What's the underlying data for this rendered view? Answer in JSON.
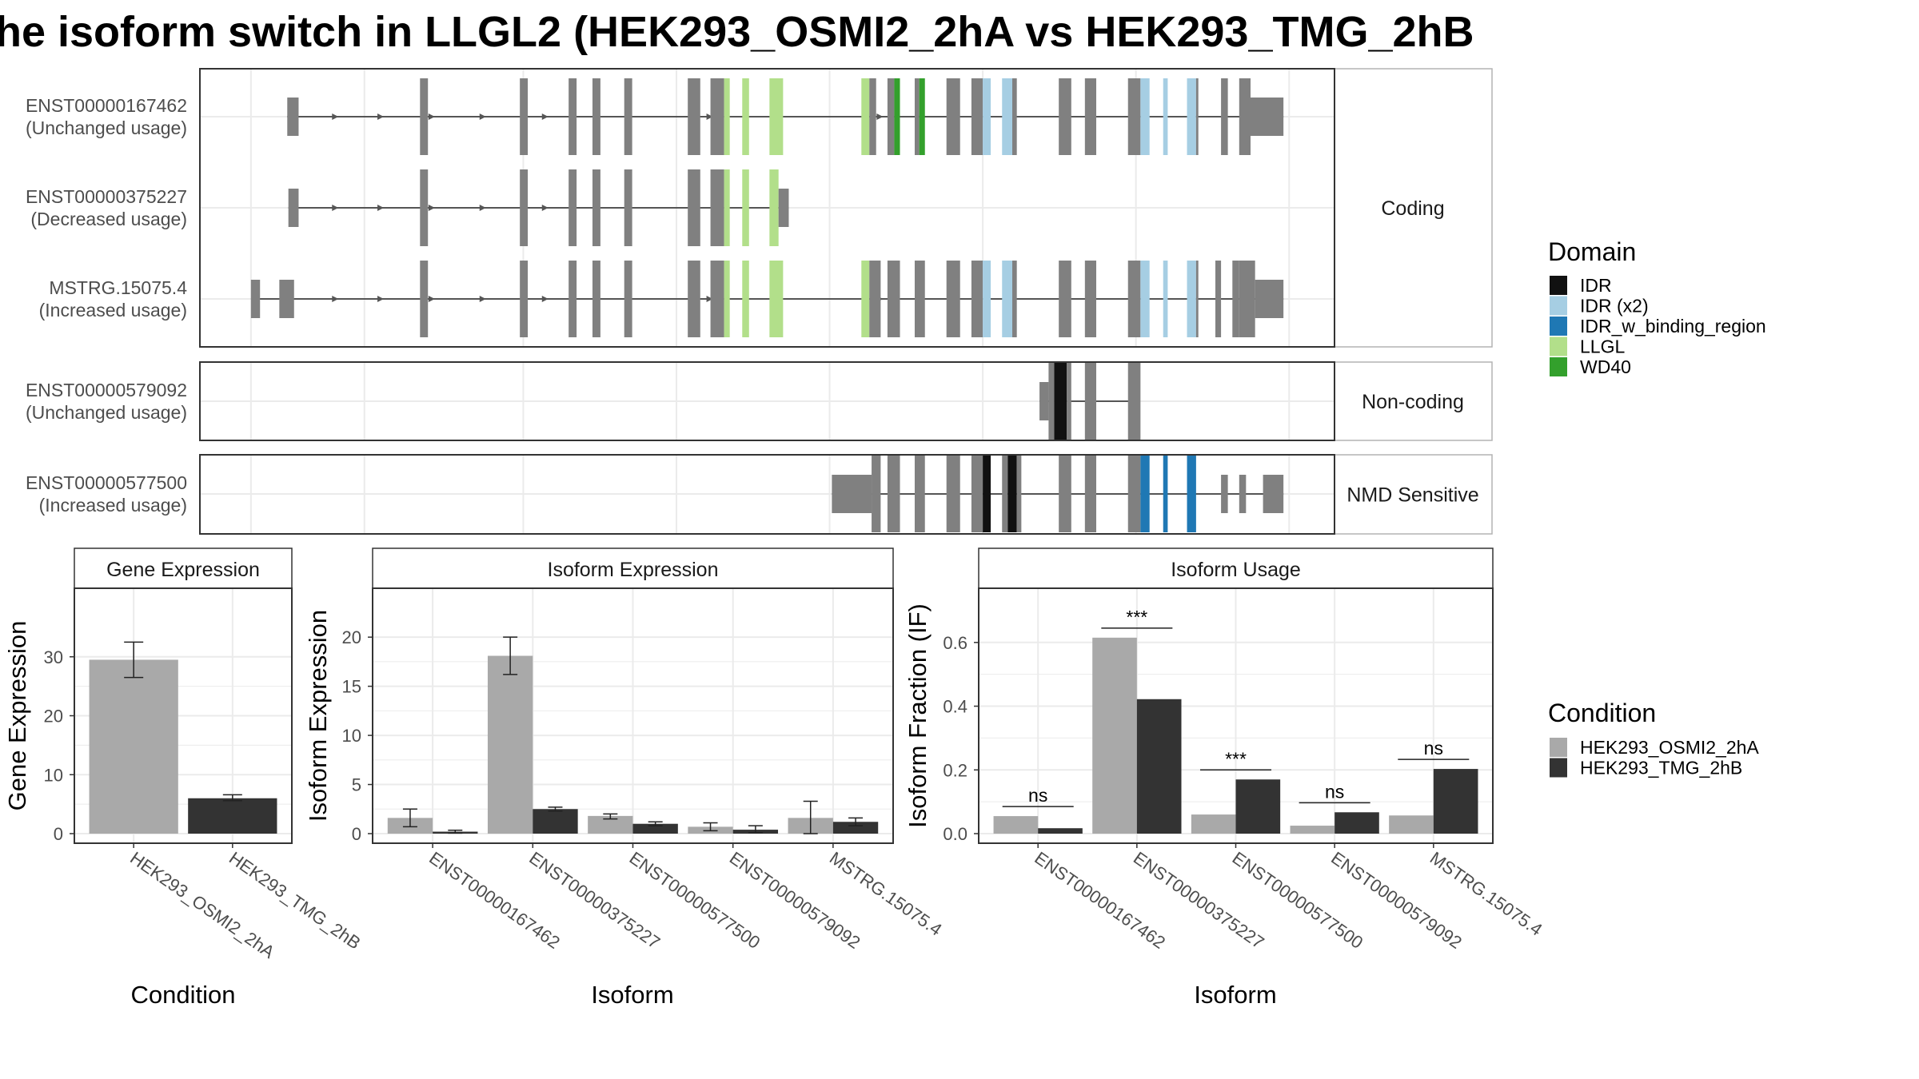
{
  "title": "he isoform switch in LLGL2 (HEK293_OSMI2_2hA vs HEK293_TMG_2hB",
  "colors": {
    "exon": "#808080",
    "intron": "#555555",
    "cond_a": "#a9a9a9",
    "cond_b": "#333333",
    "grid": "#ebebeb",
    "border": "#333333",
    "facet_border": "#b3b3b3"
  },
  "domain_legend": {
    "title": "Domain",
    "items": [
      {
        "label": "IDR",
        "color": "#111111"
      },
      {
        "label": "IDR (x2)",
        "color": "#a6cee3"
      },
      {
        "label": "IDR_w_binding_region",
        "color": "#1f78b4"
      },
      {
        "label": "LLGL",
        "color": "#b2df8a"
      },
      {
        "label": "WD40",
        "color": "#33a02c"
      }
    ]
  },
  "condition_legend": {
    "title": "Condition",
    "items": [
      {
        "label": "HEK293_OSMI2_2hA",
        "color": "#a9a9a9"
      },
      {
        "label": "HEK293_TMG_2hB",
        "color": "#333333"
      }
    ]
  },
  "structure": {
    "groups": [
      {
        "label": "Coding",
        "tracks": [
          {
            "id": "ENST00000167462",
            "usage": "(Unchanged usage)",
            "intron": [
              0.077,
              0.955
            ],
            "arrows": [
              0.12,
              0.16,
              0.205,
              0.25,
              0.305,
              0.45,
              0.6
            ],
            "exons": [
              [
                0.077,
                0.087,
                "exon",
                "half"
              ],
              [
                0.194,
                0.201,
                "exon",
                "full"
              ],
              [
                0.282,
                0.289,
                "exon",
                "full"
              ],
              [
                0.325,
                0.332,
                "exon",
                "full"
              ],
              [
                0.346,
                0.353,
                "exon",
                "full"
              ],
              [
                0.374,
                0.381,
                "exon",
                "full"
              ],
              [
                0.43,
                0.441,
                "exon",
                "full"
              ],
              [
                0.45,
                0.462,
                "exon",
                "full"
              ],
              [
                0.462,
                0.467,
                "LLGL",
                "full"
              ],
              [
                0.478,
                0.484,
                "LLGL",
                "full"
              ],
              [
                0.502,
                0.514,
                "LLGL",
                "full"
              ],
              [
                0.583,
                0.59,
                "LLGL",
                "full"
              ],
              [
                0.59,
                0.596,
                "exon",
                "full"
              ],
              [
                0.606,
                0.612,
                "exon",
                "full"
              ],
              [
                0.612,
                0.617,
                "WD40",
                "full"
              ],
              [
                0.63,
                0.634,
                "exon",
                "full"
              ],
              [
                0.634,
                0.639,
                "WD40",
                "full"
              ],
              [
                0.658,
                0.67,
                "exon",
                "full"
              ],
              [
                0.68,
                0.69,
                "exon",
                "full"
              ],
              [
                0.69,
                0.697,
                "IDR_light",
                "full"
              ],
              [
                0.707,
                0.716,
                "IDR_light",
                "full"
              ],
              [
                0.716,
                0.72,
                "exon",
                "full"
              ],
              [
                0.757,
                0.768,
                "exon",
                "full"
              ],
              [
                0.78,
                0.79,
                "exon",
                "full"
              ],
              [
                0.818,
                0.829,
                "exon",
                "full"
              ],
              [
                0.829,
                0.837,
                "IDR_light",
                "full"
              ],
              [
                0.849,
                0.853,
                "IDR_light",
                "full"
              ],
              [
                0.87,
                0.878,
                "IDR_light",
                "full"
              ],
              [
                0.878,
                0.88,
                "exon",
                "full"
              ],
              [
                0.9,
                0.906,
                "exon",
                "full"
              ],
              [
                0.916,
                0.926,
                "exon",
                "full"
              ],
              [
                0.926,
                0.955,
                "exon",
                "half"
              ]
            ]
          },
          {
            "id": "ENST00000375227",
            "usage": "(Decreased usage)",
            "intron": [
              0.078,
              0.519
            ],
            "arrows": [
              0.12,
              0.16,
              0.205,
              0.25,
              0.305
            ],
            "exons": [
              [
                0.078,
                0.087,
                "exon",
                "half"
              ],
              [
                0.194,
                0.201,
                "exon",
                "full"
              ],
              [
                0.282,
                0.289,
                "exon",
                "full"
              ],
              [
                0.325,
                0.332,
                "exon",
                "full"
              ],
              [
                0.346,
                0.353,
                "exon",
                "full"
              ],
              [
                0.374,
                0.381,
                "exon",
                "full"
              ],
              [
                0.43,
                0.441,
                "exon",
                "full"
              ],
              [
                0.45,
                0.462,
                "exon",
                "full"
              ],
              [
                0.462,
                0.467,
                "LLGL",
                "full"
              ],
              [
                0.478,
                0.484,
                "LLGL",
                "full"
              ],
              [
                0.502,
                0.51,
                "LLGL",
                "full"
              ],
              [
                0.51,
                0.519,
                "exon",
                "half"
              ]
            ]
          },
          {
            "id": "MSTRG.15075.4",
            "usage": "(Increased usage)",
            "intron": [
              0.045,
              0.955
            ],
            "arrows": [
              0.12,
              0.16,
              0.205,
              0.25,
              0.305,
              0.45,
              0.6
            ],
            "exons": [
              [
                0.045,
                0.053,
                "exon",
                "half"
              ],
              [
                0.07,
                0.083,
                "exon",
                "half"
              ],
              [
                0.194,
                0.201,
                "exon",
                "full"
              ],
              [
                0.282,
                0.289,
                "exon",
                "full"
              ],
              [
                0.325,
                0.332,
                "exon",
                "full"
              ],
              [
                0.346,
                0.353,
                "exon",
                "full"
              ],
              [
                0.374,
                0.381,
                "exon",
                "full"
              ],
              [
                0.43,
                0.441,
                "exon",
                "full"
              ],
              [
                0.45,
                0.462,
                "exon",
                "full"
              ],
              [
                0.462,
                0.467,
                "LLGL",
                "full"
              ],
              [
                0.478,
                0.484,
                "LLGL",
                "full"
              ],
              [
                0.502,
                0.514,
                "LLGL",
                "full"
              ],
              [
                0.583,
                0.59,
                "LLGL",
                "full"
              ],
              [
                0.59,
                0.6,
                "exon",
                "full"
              ],
              [
                0.606,
                0.617,
                "exon",
                "full"
              ],
              [
                0.63,
                0.639,
                "exon",
                "full"
              ],
              [
                0.658,
                0.67,
                "exon",
                "full"
              ],
              [
                0.68,
                0.69,
                "exon",
                "full"
              ],
              [
                0.69,
                0.697,
                "IDR_light",
                "full"
              ],
              [
                0.707,
                0.716,
                "IDR_light",
                "full"
              ],
              [
                0.716,
                0.72,
                "exon",
                "full"
              ],
              [
                0.757,
                0.768,
                "exon",
                "full"
              ],
              [
                0.78,
                0.79,
                "exon",
                "full"
              ],
              [
                0.818,
                0.829,
                "exon",
                "full"
              ],
              [
                0.829,
                0.837,
                "IDR_light",
                "full"
              ],
              [
                0.849,
                0.853,
                "IDR_light",
                "full"
              ],
              [
                0.87,
                0.878,
                "IDR_light",
                "full"
              ],
              [
                0.878,
                0.88,
                "exon",
                "full"
              ],
              [
                0.895,
                0.9,
                "exon",
                "full"
              ],
              [
                0.91,
                0.916,
                "exon",
                "full"
              ],
              [
                0.916,
                0.93,
                "exon",
                "full"
              ],
              [
                0.93,
                0.955,
                "exon",
                "half"
              ]
            ]
          }
        ]
      },
      {
        "label": "Non-coding",
        "tracks": [
          {
            "id": "ENST00000579092",
            "usage": "(Unchanged usage)",
            "intron": [
              0.74,
              0.82
            ],
            "arrows": [],
            "exons": [
              [
                0.74,
                0.748,
                "exon",
                "half"
              ],
              [
                0.748,
                0.753,
                "exon",
                "full"
              ],
              [
                0.753,
                0.764,
                "IDR",
                "full"
              ],
              [
                0.764,
                0.768,
                "exon",
                "full"
              ],
              [
                0.78,
                0.79,
                "exon",
                "full"
              ],
              [
                0.818,
                0.829,
                "exon",
                "full"
              ]
            ]
          }
        ]
      },
      {
        "label": "NMD Sensitive",
        "tracks": [
          {
            "id": "ENST00000577500",
            "usage": "(Increased usage)",
            "intron": [
              0.557,
              0.955
            ],
            "arrows": [],
            "exons": [
              [
                0.557,
                0.592,
                "exon",
                "half"
              ],
              [
                0.592,
                0.6,
                "exon",
                "full"
              ],
              [
                0.606,
                0.617,
                "exon",
                "full"
              ],
              [
                0.63,
                0.639,
                "exon",
                "full"
              ],
              [
                0.658,
                0.67,
                "exon",
                "full"
              ],
              [
                0.68,
                0.69,
                "exon",
                "full"
              ],
              [
                0.69,
                0.697,
                "IDR",
                "full"
              ],
              [
                0.707,
                0.712,
                "exon",
                "full"
              ],
              [
                0.712,
                0.72,
                "IDR",
                "full"
              ],
              [
                0.72,
                0.724,
                "exon",
                "full"
              ],
              [
                0.757,
                0.768,
                "exon",
                "full"
              ],
              [
                0.78,
                0.79,
                "exon",
                "full"
              ],
              [
                0.818,
                0.829,
                "exon",
                "full"
              ],
              [
                0.829,
                0.837,
                "IDR_w_binding",
                "full"
              ],
              [
                0.849,
                0.853,
                "IDR_w_binding",
                "full"
              ],
              [
                0.87,
                0.878,
                "IDR_w_binding",
                "full"
              ],
              [
                0.9,
                0.906,
                "exon",
                "half"
              ],
              [
                0.916,
                0.922,
                "exon",
                "half"
              ],
              [
                0.937,
                0.955,
                "exon",
                "half"
              ]
            ]
          }
        ]
      }
    ]
  },
  "chart_data": [
    {
      "type": "bar",
      "title": "Gene Expression",
      "xlabel": "Condition",
      "ylabel": "Gene Expression",
      "ylim": [
        0,
        40
      ],
      "yticks": [
        0,
        10,
        20,
        30
      ],
      "categories": [
        "HEK293_OSMI2_2hA",
        "HEK293_TMG_2hB"
      ],
      "values": [
        29.5,
        6.0
      ],
      "errors": [
        [
          26.5,
          32.5
        ],
        [
          5.6,
          6.6
        ]
      ],
      "bar_colors": [
        "#a9a9a9",
        "#333333"
      ]
    },
    {
      "type": "bar",
      "title": "Isoform Expression",
      "xlabel": "Isoform",
      "ylabel": "Isoform Expression",
      "ylim": [
        0,
        24
      ],
      "yticks": [
        0,
        5,
        10,
        15,
        20
      ],
      "categories": [
        "ENST00000167462",
        "ENST00000375227",
        "ENST00000577500",
        "ENST00000579092",
        "MSTRG.15075.4"
      ],
      "series": [
        {
          "name": "HEK293_OSMI2_2hA",
          "values": [
            1.6,
            18.1,
            1.8,
            0.7,
            1.6
          ],
          "errors": [
            [
              0.7,
              2.5
            ],
            [
              16.2,
              20.0
            ],
            [
              1.5,
              2.0
            ],
            [
              0.3,
              1.1
            ],
            [
              0.0,
              3.3
            ]
          ]
        },
        {
          "name": "HEK293_TMG_2hB",
          "values": [
            0.2,
            2.5,
            1.0,
            0.4,
            1.2
          ],
          "errors": [
            [
              0.05,
              0.35
            ],
            [
              2.3,
              2.7
            ],
            [
              0.8,
              1.2
            ],
            [
              0.1,
              0.8
            ],
            [
              0.8,
              1.6
            ]
          ]
        }
      ]
    },
    {
      "type": "bar",
      "title": "Isoform Usage",
      "xlabel": "Isoform",
      "ylabel": "Isoform Fraction (IF)",
      "ylim": [
        0,
        0.74
      ],
      "yticks": [
        0.0,
        0.2,
        0.4,
        0.6
      ],
      "ytick_labels": [
        "0.0",
        "0.2",
        "0.4",
        "0.6"
      ],
      "categories": [
        "ENST00000167462",
        "ENST00000375227",
        "ENST00000577500",
        "ENST00000579092",
        "MSTRG.15075.4"
      ],
      "series": [
        {
          "name": "HEK293_OSMI2_2hA",
          "values": [
            0.055,
            0.615,
            0.06,
            0.025,
            0.057
          ]
        },
        {
          "name": "HEK293_TMG_2hB",
          "values": [
            0.017,
            0.422,
            0.17,
            0.067,
            0.203
          ]
        }
      ],
      "significance": [
        {
          "label": "ns",
          "y": 0.085
        },
        {
          "label": "***",
          "y": 0.645
        },
        {
          "label": "***",
          "y": 0.2
        },
        {
          "label": "ns",
          "y": 0.097
        },
        {
          "label": "ns",
          "y": 0.233
        }
      ]
    }
  ]
}
